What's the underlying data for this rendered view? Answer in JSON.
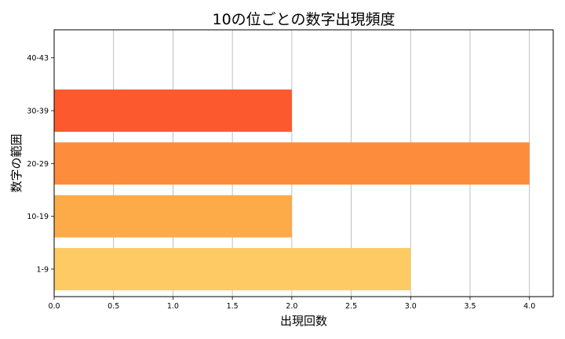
{
  "chart_data": {
    "type": "bar",
    "orientation": "horizontal",
    "title": "10の位ごとの数字出現頻度",
    "xlabel": "出現回数",
    "ylabel": "数字の範囲",
    "categories": [
      "1-9",
      "10-19",
      "20-29",
      "30-39",
      "40-43"
    ],
    "values": [
      3,
      2,
      4,
      2,
      0
    ],
    "colors": [
      "#FDCA64",
      "#FDAA48",
      "#FD8D3C",
      "#FC5A2E",
      "#E31A1C"
    ],
    "xlim": [
      0,
      4.2
    ],
    "xticks": [
      "0.0",
      "0.5",
      "1.0",
      "1.5",
      "2.0",
      "2.5",
      "3.0",
      "3.5",
      "4.0"
    ],
    "grid": "vertical"
  }
}
